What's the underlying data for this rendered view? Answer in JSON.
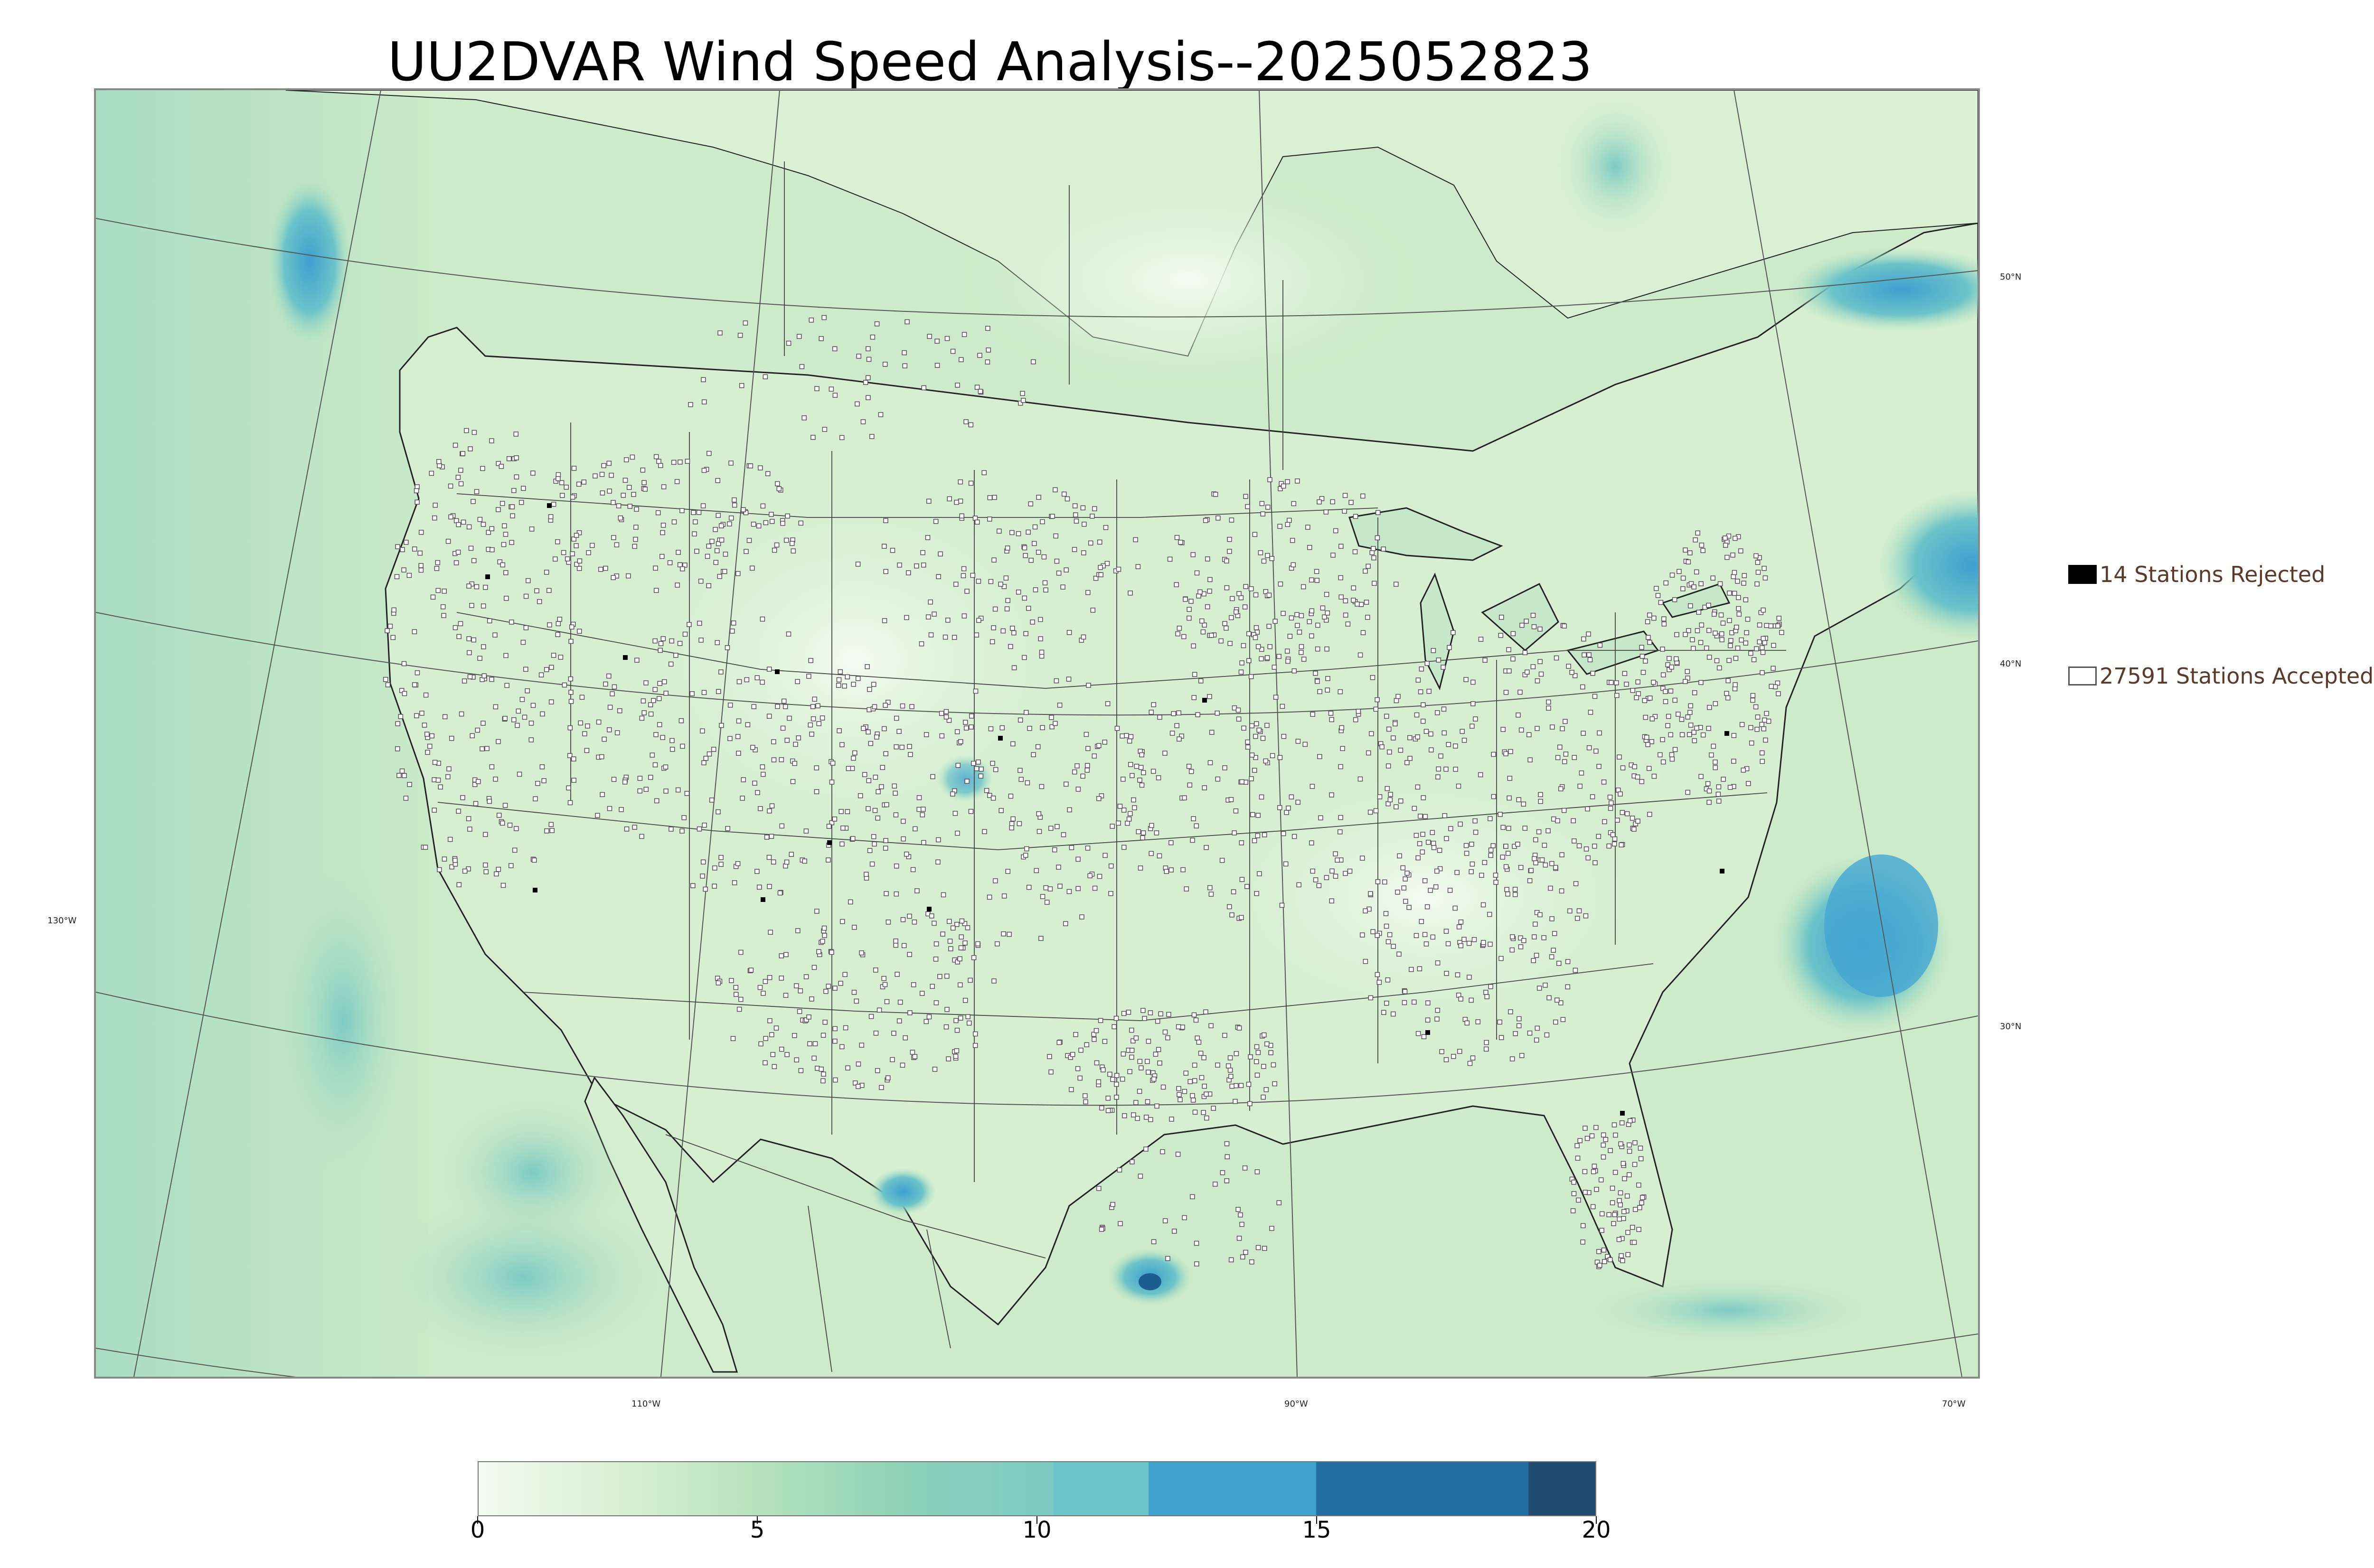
{
  "title": "UU2DVAR Wind Speed Analysis--2025052823",
  "legend": {
    "rejected": "14 Stations Rejected",
    "accepted": "27591 Stations Accepted"
  },
  "lat_labels": [
    "50°N",
    "40°N",
    "30°N"
  ],
  "lon_labels": [
    "130°W",
    "110°W",
    "90°W",
    "70°W"
  ],
  "colorbar": {
    "ticks": [
      "0",
      "5",
      "10",
      "15",
      "20"
    ],
    "range": [
      0,
      20
    ],
    "bounds": [
      0,
      10.3,
      12,
      15,
      18.8,
      20
    ],
    "colors": [
      "#f2faf0",
      "#6cc3c9",
      "#41a4cf",
      "#236fa3",
      "#204c72"
    ],
    "gradient_stops": [
      "#f2faf0",
      "#d8f0d2",
      "#b4e2bc",
      "#8cd0b8",
      "#7ccac4"
    ]
  },
  "colors": {
    "land": "#d3eecd",
    "ocean": "#c2e6c3",
    "windy": "#4fa8d2",
    "borders": "#333333",
    "station_edge": "#5a4a5a"
  }
}
